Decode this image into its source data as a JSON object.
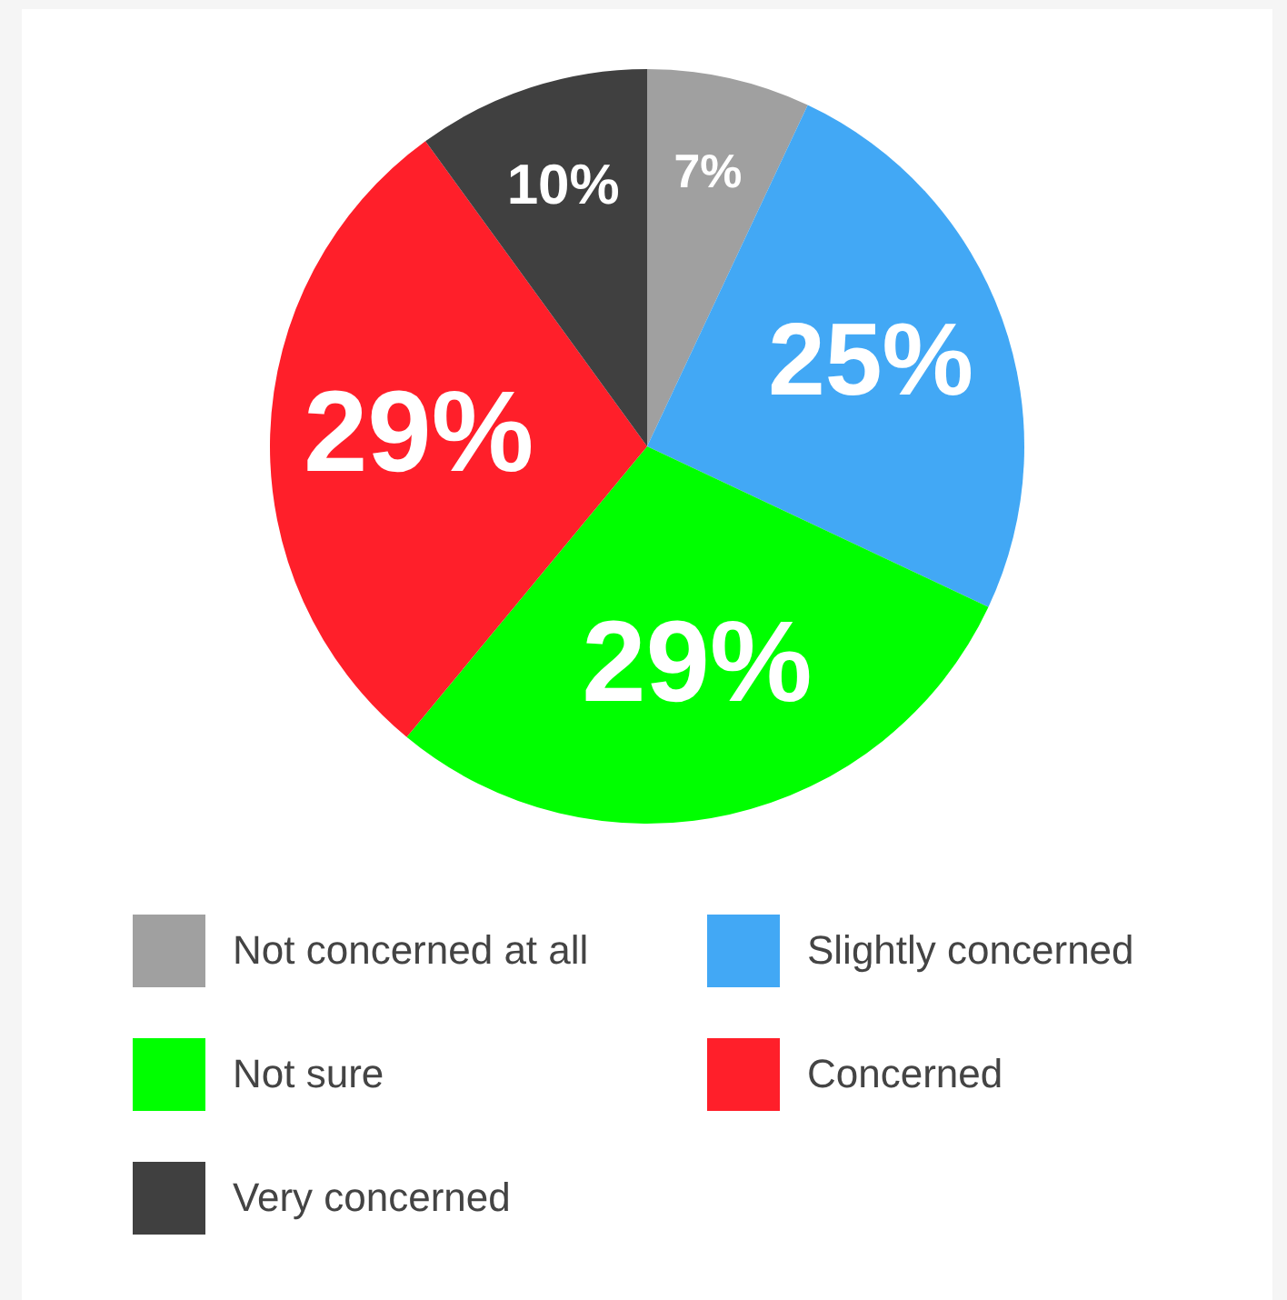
{
  "chart_data": {
    "type": "pie",
    "categories": [
      "Not concerned at all",
      "Slightly concerned",
      "Not sure",
      "Concerned",
      "Very concerned"
    ],
    "values": [
      7,
      25,
      29,
      29,
      10
    ],
    "colors": [
      "#a0a0a0",
      "#42a8f5",
      "#00ff00",
      "#ff1f2a",
      "#404040"
    ],
    "value_labels": [
      "7%",
      "25%",
      "29%",
      "29%",
      "10%"
    ],
    "legend": "bottom"
  }
}
